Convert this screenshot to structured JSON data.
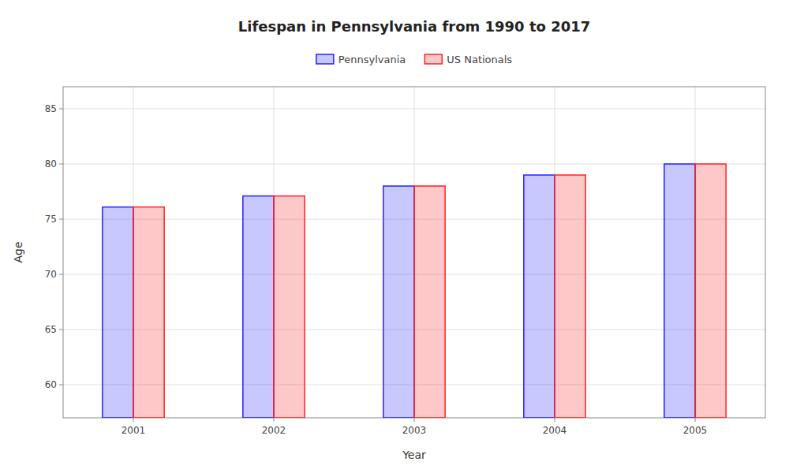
{
  "chart_data": {
    "type": "bar",
    "title": "Lifespan in Pennsylvania from 1990 to 2017",
    "x_label": "Year",
    "y_label": "Age",
    "categories": [
      "2001",
      "2002",
      "2003",
      "2004",
      "2005"
    ],
    "series": [
      {
        "name": "Pennsylvania",
        "color": "#2222ff",
        "values": [
          76.1,
          77.1,
          78.0,
          79.0,
          80.0
        ]
      },
      {
        "name": "US Nationals",
        "color": "#ff2222",
        "values": [
          76.1,
          77.1,
          78.0,
          79.0,
          80.0
        ]
      }
    ],
    "ylim": [
      57,
      87
    ],
    "yticks": [
      60,
      65,
      70,
      75,
      80,
      85
    ],
    "grid": true,
    "legend": "top"
  }
}
